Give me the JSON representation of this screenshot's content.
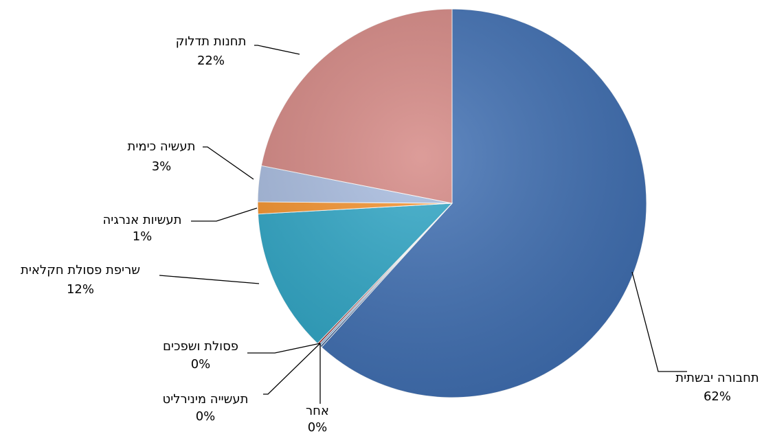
{
  "chart_data": {
    "type": "pie",
    "title": "",
    "slices": [
      {
        "label": "תחבורה יבשתית",
        "value": 62,
        "value_label": "62%",
        "color": "#3f6fb3"
      },
      {
        "label": "אחר",
        "value": 0,
        "value_label": "0%",
        "color": "#2f5a96"
      },
      {
        "label": "תעשייה מינירליט",
        "value": 0,
        "value_label": "0%",
        "color": "#7ea9d6"
      },
      {
        "label": "פסולת ושפכים",
        "value": 0,
        "value_label": "0%",
        "color": "#9d3030"
      },
      {
        "label": "שריפת פסולת חקלאית",
        "value": 12,
        "value_label": "12%",
        "color": "#2ea6c6"
      },
      {
        "label": "תעשיות אנרגיה",
        "value": 1,
        "value_label": "1%",
        "color": "#f5922c"
      },
      {
        "label": "תעשיה כימית",
        "value": 3,
        "value_label": "3%",
        "color": "#a8bce0"
      },
      {
        "label": "תחנות תדלוק",
        "value": 22,
        "value_label": "22%",
        "color": "#d58783"
      }
    ],
    "legend": "none"
  }
}
